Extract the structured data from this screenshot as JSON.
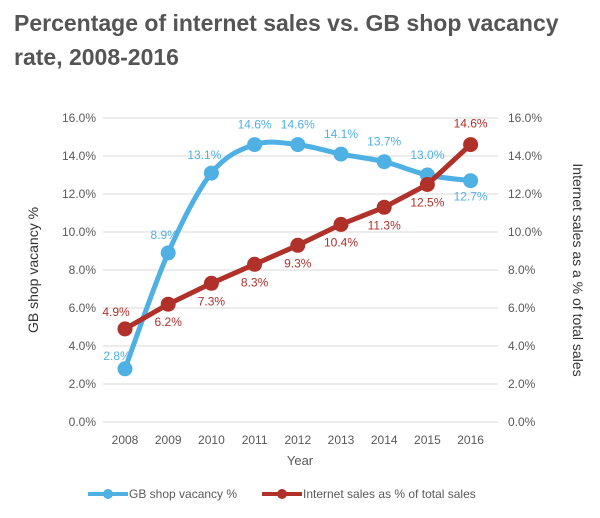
{
  "title": "Percentage of internet sales vs. GB shop vacancy rate, 2008-2016",
  "chart_data": {
    "type": "line",
    "title": "Percentage of internet sales vs. GB shop vacancy rate, 2008-2016",
    "xlabel": "Year",
    "ylabel_left": "GB shop vacancy %",
    "ylabel_right": "Internet sales as a % of total sales",
    "ylim": [
      0,
      16
    ],
    "y_ticks": [
      "0.0%",
      "2.0%",
      "4.0%",
      "6.0%",
      "8.0%",
      "10.0%",
      "12.0%",
      "14.0%",
      "16.0%"
    ],
    "categories": [
      "2008",
      "2009",
      "2010",
      "2011",
      "2012",
      "2013",
      "2014",
      "2015",
      "2016"
    ],
    "series": [
      {
        "name": "GB shop vacancy %",
        "color": "#4fb0e4",
        "values": [
          2.8,
          8.9,
          13.1,
          14.6,
          14.6,
          14.1,
          13.7,
          13.0,
          12.7
        ],
        "labels": [
          "2.8%",
          "8.9%",
          "13.1%",
          "14.6%",
          "14.6%",
          "14.1%",
          "13.7%",
          "13.0%",
          "12.7%"
        ],
        "smooth": true
      },
      {
        "name": "Internet sales as % of total sales",
        "color": "#b0302a",
        "values": [
          4.9,
          6.2,
          7.3,
          8.3,
          9.3,
          10.4,
          11.3,
          12.5,
          14.6
        ],
        "labels": [
          "4.9%",
          "6.2%",
          "7.3%",
          "8.3%",
          "9.3%",
          "10.4%",
          "11.3%",
          "12.5%",
          "14.6%"
        ],
        "smooth": false
      }
    ],
    "legend_position": "bottom",
    "grid": true
  }
}
